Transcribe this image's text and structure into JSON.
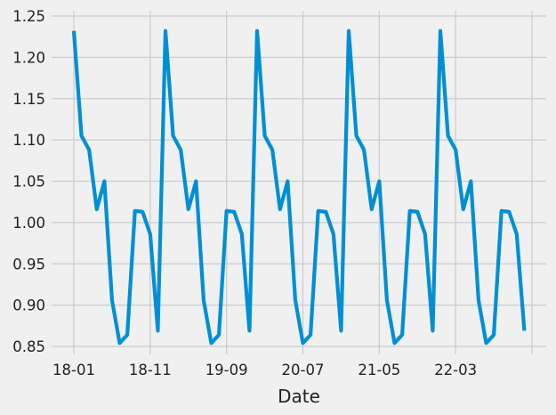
{
  "chart_data": {
    "type": "line",
    "title": "",
    "xlabel": "Date",
    "ylabel": "",
    "grid": true,
    "ylim": [
      0.8449,
      1.2528
    ],
    "yticks": [
      0.85,
      0.9,
      0.95,
      1.0,
      1.05,
      1.1,
      1.15,
      1.2,
      1.25
    ],
    "ytick_labels": [
      "0.85",
      "0.90",
      "0.95",
      "1.00",
      "1.05",
      "1.10",
      "1.15",
      "1.20",
      "1.25"
    ],
    "x_start": "2018-01",
    "x_end": "2023-01",
    "xtick_labels": [
      "18-01",
      "18-11",
      "19-09",
      "20-07",
      "21-05",
      "22-03"
    ],
    "series": [
      {
        "name": "",
        "color": "#008fd5",
        "x": [
          "2018-01",
          "2018-02",
          "2018-03",
          "2018-04",
          "2018-05",
          "2018-06",
          "2018-07",
          "2018-08",
          "2018-09",
          "2018-10",
          "2018-11",
          "2018-12",
          "2019-01",
          "2019-02",
          "2019-03",
          "2019-04",
          "2019-05",
          "2019-06",
          "2019-07",
          "2019-08",
          "2019-09",
          "2019-10",
          "2019-11",
          "2019-12",
          "2020-01",
          "2020-02",
          "2020-03",
          "2020-04",
          "2020-05",
          "2020-06",
          "2020-07",
          "2020-08",
          "2020-09",
          "2020-10",
          "2020-11",
          "2020-12",
          "2021-01",
          "2021-02",
          "2021-03",
          "2021-04",
          "2021-05",
          "2021-06",
          "2021-07",
          "2021-08",
          "2021-09",
          "2021-10",
          "2021-11",
          "2021-12",
          "2022-01",
          "2022-02",
          "2022-03",
          "2022-04",
          "2022-05",
          "2022-06",
          "2022-07",
          "2022-08",
          "2022-09",
          "2022-10",
          "2022-11",
          "2022-12"
        ],
        "values": [
          1.232,
          1.105,
          1.088,
          1.016,
          1.05,
          0.906,
          0.854,
          0.864,
          1.014,
          1.013,
          0.986,
          0.869,
          1.232,
          1.105,
          1.088,
          1.016,
          1.05,
          0.906,
          0.854,
          0.864,
          1.014,
          1.013,
          0.986,
          0.869,
          1.232,
          1.105,
          1.088,
          1.016,
          1.05,
          0.906,
          0.854,
          0.864,
          1.014,
          1.013,
          0.986,
          0.869,
          1.232,
          1.105,
          1.088,
          1.016,
          1.05,
          0.906,
          0.854,
          0.864,
          1.014,
          1.013,
          0.986,
          0.869,
          1.232,
          1.105,
          1.088,
          1.016,
          1.05,
          0.906,
          0.854,
          0.864,
          1.014,
          1.013,
          0.986,
          0.869
        ]
      }
    ]
  }
}
